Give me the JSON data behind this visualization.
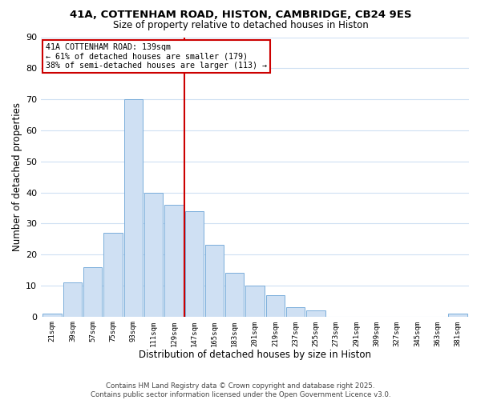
{
  "title": "41A, COTTENHAM ROAD, HISTON, CAMBRIDGE, CB24 9ES",
  "subtitle": "Size of property relative to detached houses in Histon",
  "xlabel": "Distribution of detached houses by size in Histon",
  "ylabel": "Number of detached properties",
  "bar_color": "#cfe0f3",
  "bar_edge_color": "#7aaddb",
  "background_color": "#ffffff",
  "grid_color": "#cfe0f3",
  "vline_x": 7,
  "vline_color": "#cc0000",
  "bar_heights": [
    1,
    11,
    16,
    27,
    70,
    40,
    36,
    34,
    23,
    14,
    10,
    7,
    3,
    2,
    0,
    0,
    0,
    0,
    0,
    0,
    1
  ],
  "tick_labels": [
    "21sqm",
    "39sqm",
    "57sqm",
    "75sqm",
    "93sqm",
    "111sqm",
    "129sqm",
    "147sqm",
    "165sqm",
    "183sqm",
    "201sqm",
    "219sqm",
    "237sqm",
    "255sqm",
    "273sqm",
    "291sqm",
    "309sqm",
    "327sqm",
    "345sqm",
    "363sqm",
    "381sqm"
  ],
  "ylim": [
    0,
    90
  ],
  "yticks": [
    0,
    10,
    20,
    30,
    40,
    50,
    60,
    70,
    80,
    90
  ],
  "annotation_title": "41A COTTENHAM ROAD: 139sqm",
  "annotation_line1": "← 61% of detached houses are smaller (179)",
  "annotation_line2": "38% of semi-detached houses are larger (113) →",
  "footnote1": "Contains HM Land Registry data © Crown copyright and database right 2025.",
  "footnote2": "Contains public sector information licensed under the Open Government Licence v3.0."
}
